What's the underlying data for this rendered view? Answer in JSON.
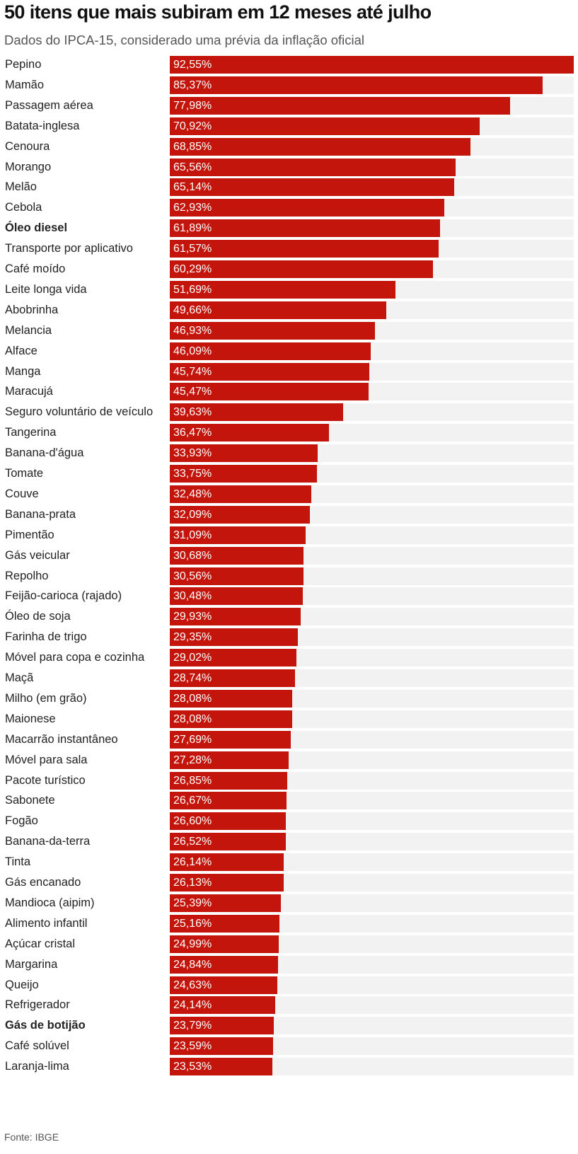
{
  "header": {
    "title": "50 itens que mais subiram em 12 meses até julho",
    "subtitle": "Dados do IPCA-15, considerado uma prévia da inflação oficial"
  },
  "footer": {
    "source": "Fonte: IBGE"
  },
  "colors": {
    "bar": "#c4150c",
    "track": "#f2f2f2",
    "value_text": "#ffffff"
  },
  "chart_data": {
    "type": "bar",
    "orientation": "horizontal",
    "unit": "%",
    "xlim": [
      0,
      92.55
    ],
    "categories": [
      "Pepino",
      "Mamão",
      "Passagem aérea",
      "Batata-inglesa",
      "Cenoura",
      "Morango",
      "Melão",
      "Cebola",
      "Óleo diesel",
      "Transporte por aplicativo",
      "Café moído",
      "Leite longa vida",
      "Abobrinha",
      "Melancia",
      "Alface",
      "Manga",
      "Maracujá",
      "Seguro voluntário de veículo",
      "Tangerina",
      "Banana-d'água",
      "Tomate",
      "Couve",
      "Banana-prata",
      "Pimentão",
      "Gás veicular",
      "Repolho",
      "Feijão-carioca (rajado)",
      "Óleo de soja",
      "Farinha de trigo",
      "Móvel para copa e cozinha",
      "Maçã",
      "Milho (em grão)",
      "Maionese",
      "Macarrão instantâneo",
      "Móvel para sala",
      "Pacote turístico",
      "Sabonete",
      "Fogão",
      "Banana-da-terra",
      "Tinta",
      "Gás encanado",
      "Mandioca (aipim)",
      "Alimento infantil",
      "Açúcar cristal",
      "Margarina",
      "Queijo",
      "Refrigerador",
      "Gás de botijão",
      "Café solúvel",
      "Laranja-lima"
    ],
    "values": [
      92.55,
      85.37,
      77.98,
      70.92,
      68.85,
      65.56,
      65.14,
      62.93,
      61.89,
      61.57,
      60.29,
      51.69,
      49.66,
      46.93,
      46.09,
      45.74,
      45.47,
      39.63,
      36.47,
      33.93,
      33.75,
      32.48,
      32.09,
      31.09,
      30.68,
      30.56,
      30.48,
      29.93,
      29.35,
      29.02,
      28.74,
      28.08,
      28.08,
      27.69,
      27.28,
      26.85,
      26.67,
      26.6,
      26.52,
      26.14,
      26.13,
      25.39,
      25.16,
      24.99,
      24.84,
      24.63,
      24.14,
      23.79,
      23.59,
      23.53
    ],
    "value_labels": [
      "92,55%",
      "85,37%",
      "77,98%",
      "70,92%",
      "68,85%",
      "65,56%",
      "65,14%",
      "62,93%",
      "61,89%",
      "61,57%",
      "60,29%",
      "51,69%",
      "49,66%",
      "46,93%",
      "46,09%",
      "45,74%",
      "45,47%",
      "39,63%",
      "36,47%",
      "33,93%",
      "33,75%",
      "32,48%",
      "32,09%",
      "31,09%",
      "30,68%",
      "30,56%",
      "30,48%",
      "29,93%",
      "29,35%",
      "29,02%",
      "28,74%",
      "28,08%",
      "28,08%",
      "27,69%",
      "27,28%",
      "26,85%",
      "26,67%",
      "26,60%",
      "26,52%",
      "26,14%",
      "26,13%",
      "25,39%",
      "25,16%",
      "24,99%",
      "24,84%",
      "24,63%",
      "24,14%",
      "23,79%",
      "23,59%",
      "23,53%"
    ],
    "highlighted": [
      "Óleo diesel",
      "Gás de botijão"
    ]
  }
}
